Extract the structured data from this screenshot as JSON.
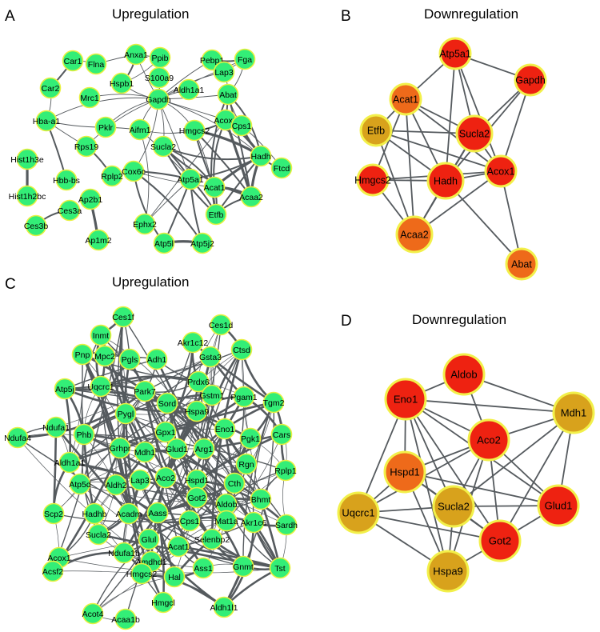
{
  "colors": {
    "small_node_fill": "#33ee77",
    "small_node_stroke": "#e8f040",
    "edge": "#555a5e",
    "red": "#ee2211",
    "orange_red": "#ef4a12",
    "orange": "#ee6a1a",
    "gold": "#d8a21c",
    "ring": "#f2f04a"
  },
  "panels": [
    {
      "id": "A",
      "letter": "A",
      "title": "Upregulation"
    },
    {
      "id": "B",
      "letter": "B",
      "title": "Downregulation"
    },
    {
      "id": "C",
      "letter": "C",
      "title": "Upregulation"
    },
    {
      "id": "D",
      "letter": "D",
      "title": "Downregulation"
    }
  ],
  "network_A": {
    "nodes": [
      "Car1",
      "Flna",
      "Anxa1",
      "Ppib",
      "Car2",
      "Hspb1",
      "S100a9",
      "Pebp1",
      "Fga",
      "Lap3",
      "Aldh1a1",
      "Mrc1",
      "Gapdh",
      "Abat",
      "Hba-a1",
      "Pklr",
      "Aifm1",
      "Hmgcs2",
      "Acox1",
      "Cps1",
      "Rps19",
      "Sucla2",
      "Hist1h3e",
      "Hbb-bs",
      "Rplp2",
      "Cox6c",
      "Hadh",
      "Ftcd",
      "Hist1h2bc",
      "Atp5a1",
      "Acat1",
      "Acaa2",
      "Ces3a",
      "Ap2b1",
      "Etfb",
      "Ces3b",
      "Ephx2",
      "Ap1m2",
      "Atp5l",
      "Atp5j2"
    ]
  },
  "network_B": {
    "nodes": [
      {
        "label": "Atp5a1",
        "color": "red"
      },
      {
        "label": "Gapdh",
        "color": "red"
      },
      {
        "label": "Acat1",
        "color": "orange"
      },
      {
        "label": "Etfb",
        "color": "gold"
      },
      {
        "label": "Sucla2",
        "color": "red"
      },
      {
        "label": "Hmgcs2",
        "color": "red"
      },
      {
        "label": "Hadh",
        "color": "red"
      },
      {
        "label": "Acox1",
        "color": "red"
      },
      {
        "label": "Acaa2",
        "color": "orange"
      },
      {
        "label": "Abat",
        "color": "orange"
      }
    ]
  },
  "network_C": {
    "nodes": [
      "Ces1f",
      "Inmt",
      "Ces1d",
      "Akr1c12",
      "Pnp",
      "Mpc2",
      "Pgls",
      "Adh1",
      "Gsta3",
      "Ctsd",
      "Prdx6",
      "Atp5j",
      "Uqcrc1",
      "Park7",
      "Gstm1",
      "Pgam1",
      "Tgm2",
      "Sord",
      "Hspa9",
      "Pygl",
      "Ndufa4",
      "Ndufa1",
      "Phb",
      "Gpx1",
      "Eno1",
      "Pgk1",
      "Cars",
      "Grhpr",
      "Mdh1",
      "Glud1",
      "Arg1",
      "Aldh1a1",
      "Rgn",
      "Rplp1",
      "Atp5d",
      "Aldh2",
      "Lap3",
      "Hspd1",
      "Aco2",
      "Cth",
      "Got2",
      "Aldob",
      "Bhmt",
      "Scp2",
      "Hadhb",
      "Acadm",
      "Aass",
      "Cps1",
      "Mat1a",
      "Akr1c6",
      "Sardh",
      "Sucla2",
      "Glul",
      "Selenbp2",
      "Acat1",
      "Acox1",
      "Ndufa1b",
      "Amdhd1",
      "Acsf2",
      "Hmgcs2",
      "Hal",
      "Ass1",
      "Gnmt",
      "Tst",
      "Hmgcl",
      "Acot4",
      "Aldh1l1",
      "Acaa1b"
    ]
  },
  "network_D": {
    "nodes": [
      {
        "label": "Aldob",
        "color": "red"
      },
      {
        "label": "Eno1",
        "color": "red"
      },
      {
        "label": "Mdh1",
        "color": "gold"
      },
      {
        "label": "Aco2",
        "color": "red"
      },
      {
        "label": "Hspd1",
        "color": "orange"
      },
      {
        "label": "Uqcrc1",
        "color": "gold"
      },
      {
        "label": "Sucla2",
        "color": "gold"
      },
      {
        "label": "Glud1",
        "color": "red"
      },
      {
        "label": "Got2",
        "color": "red"
      },
      {
        "label": "Hspa9",
        "color": "gold"
      }
    ]
  }
}
